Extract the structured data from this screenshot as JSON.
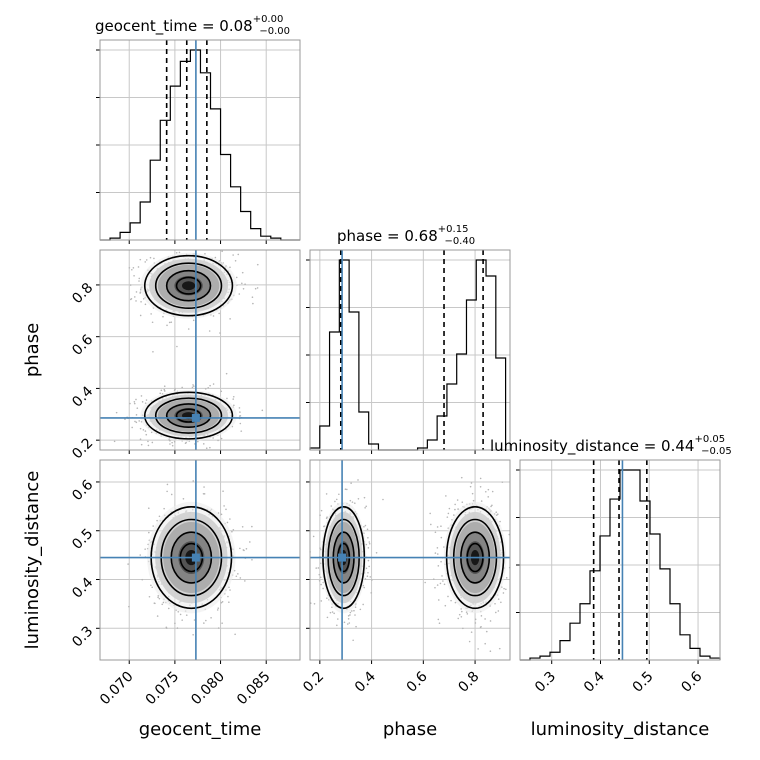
{
  "figure": {
    "colors": {
      "truth": "#4682b4",
      "hist": "#000000",
      "grid": "#c8c8c8"
    }
  },
  "chart_data": {
    "type": "corner",
    "grid": true,
    "parameters": [
      "geocent_time",
      "phase",
      "luminosity_distance"
    ],
    "truths": {
      "geocent_time": 0.0773,
      "phase": 0.286,
      "luminosity_distance": 0.445
    },
    "titles": [
      {
        "param": "geocent_time",
        "text": "geocent_time = 0.08",
        "up": "+0.00",
        "down": "−0.00"
      },
      {
        "param": "phase",
        "text": "phase = 0.68",
        "up": "+0.15",
        "down": "−0.40"
      },
      {
        "param": "luminosity_distance",
        "text": "luminosity_distance = 0.44",
        "up": "+0.05",
        "down": "−0.05"
      }
    ],
    "ranges": {
      "geocent_time": [
        0.0668,
        0.0887
      ],
      "phase": [
        0.162,
        0.935
      ],
      "luminosity_distance": [
        0.235,
        0.645
      ]
    },
    "ticks": {
      "geocent_time": {
        "values": [
          0.07,
          0.075,
          0.08,
          0.085
        ],
        "labels": [
          "0.070",
          "0.075",
          "0.080",
          "0.085"
        ]
      },
      "phase": {
        "values": [
          0.2,
          0.4,
          0.6,
          0.8
        ],
        "labels": [
          "0.2",
          "0.4",
          "0.6",
          "0.8"
        ]
      },
      "luminosity_distance": {
        "values": [
          0.3,
          0.4,
          0.5,
          0.6
        ],
        "labels": [
          "0.3",
          "0.4",
          "0.5",
          "0.6"
        ]
      }
    },
    "histograms": {
      "geocent_time": {
        "quantiles": [
          0.0741,
          0.0763,
          0.0785
        ],
        "bins": [
          0.0668,
          0.0679,
          0.069,
          0.0701,
          0.0712,
          0.0723,
          0.0734,
          0.0745,
          0.0756,
          0.0767,
          0.0778,
          0.0789,
          0.08,
          0.0811,
          0.0822,
          0.0833,
          0.0844,
          0.0855,
          0.0866,
          0.0877,
          0.0887
        ],
        "heights": [
          0,
          0.01,
          0.04,
          0.09,
          0.2,
          0.42,
          0.63,
          0.81,
          0.94,
          1.0,
          0.88,
          0.69,
          0.45,
          0.28,
          0.15,
          0.06,
          0.02,
          0.01,
          0,
          0
        ]
      },
      "phase": {
        "quantiles": [
          0.281,
          0.68,
          0.831
        ],
        "bins": [
          0.162,
          0.1998,
          0.2376,
          0.2754,
          0.3132,
          0.351,
          0.3888,
          0.4266,
          0.4644,
          0.5022,
          0.54,
          0.5778,
          0.6156,
          0.6534,
          0.6912,
          0.729,
          0.7668,
          0.8046,
          0.8424,
          0.8802,
          0.918
        ],
        "heights": [
          0.01,
          0.12,
          0.59,
          0.95,
          0.69,
          0.19,
          0.03,
          0,
          0,
          0,
          0,
          0.01,
          0.05,
          0.17,
          0.33,
          0.48,
          0.75,
          0.95,
          0.87,
          0.46
        ]
      },
      "luminosity_distance": {
        "quantiles": [
          0.386,
          0.438,
          0.495
        ],
        "bins": [
          0.235,
          0.2555,
          0.276,
          0.2965,
          0.317,
          0.3375,
          0.358,
          0.3785,
          0.399,
          0.4195,
          0.44,
          0.4605,
          0.481,
          0.5015,
          0.522,
          0.5425,
          0.563,
          0.5835,
          0.604,
          0.6245,
          0.645
        ],
        "heights": [
          0,
          0.01,
          0.02,
          0.04,
          0.1,
          0.19,
          0.29,
          0.46,
          0.64,
          0.83,
          0.98,
          0.98,
          0.82,
          0.65,
          0.47,
          0.29,
          0.13,
          0.06,
          0.02,
          0.01
        ]
      }
    },
    "density_modes": [
      {
        "x": "geocent_time",
        "y": "phase",
        "blobs": [
          {
            "cx": 0.0765,
            "cy": 0.797,
            "sx": 0.0024,
            "sy": 0.058
          },
          {
            "cx": 0.0765,
            "cy": 0.295,
            "sx": 0.0024,
            "sy": 0.045
          }
        ]
      },
      {
        "x": "geocent_time",
        "y": "luminosity_distance",
        "blobs": [
          {
            "cx": 0.0768,
            "cy": 0.445,
            "sx": 0.0022,
            "sy": 0.052
          }
        ]
      },
      {
        "x": "phase",
        "y": "luminosity_distance",
        "blobs": [
          {
            "cx": 0.292,
            "cy": 0.445,
            "sx": 0.04,
            "sy": 0.052
          },
          {
            "cx": 0.8,
            "cy": 0.445,
            "sx": 0.055,
            "sy": 0.052
          }
        ]
      }
    ]
  }
}
